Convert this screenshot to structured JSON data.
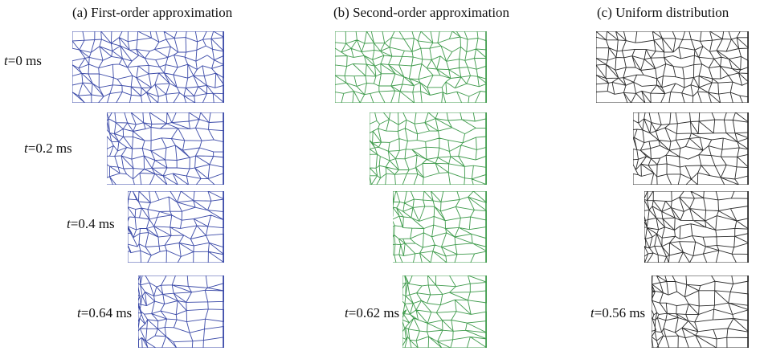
{
  "figure": {
    "columns": [
      {
        "title": "(a) First-order approximation",
        "color": "#3b4aa8"
      },
      {
        "title": "(b) Second-order approximation",
        "color": "#3f9b4c"
      },
      {
        "title": "(c) Uniform distribution",
        "color": "#2a2a2a"
      }
    ],
    "time_labels": {
      "a": [
        "0 ms",
        "0.2 ms",
        "0.4 ms",
        "0.64 ms"
      ],
      "b_final": "0.62 ms",
      "c_final": "0.56 ms"
    },
    "t_symbol": "t",
    "equals": "="
  }
}
